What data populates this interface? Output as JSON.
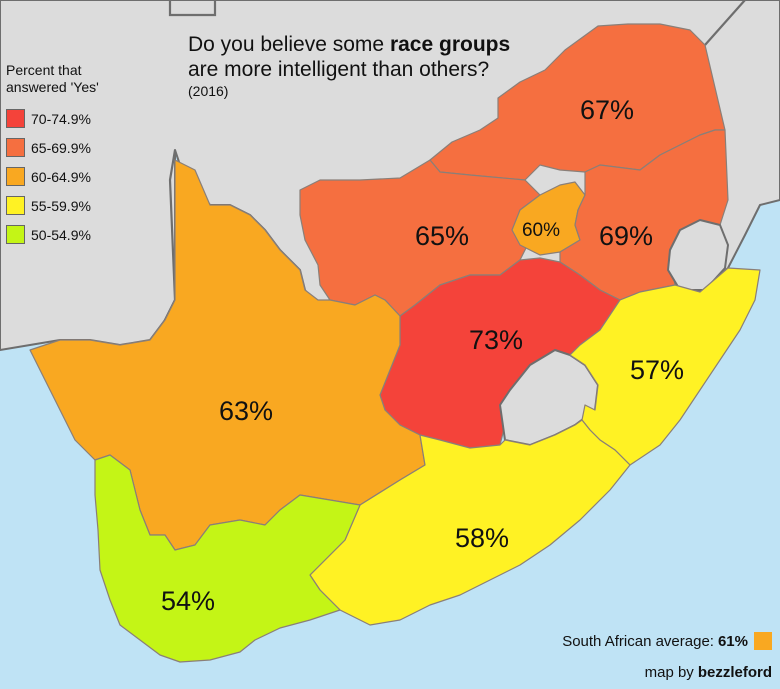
{
  "title": {
    "prefix": "Do you believe some ",
    "emphasis": "race groups",
    "line2": "are more intelligent than others?",
    "year": "(2016)"
  },
  "legend": {
    "title_line1": "Percent that",
    "title_line2": "answered 'Yes'",
    "items": [
      {
        "label": "70-74.9%",
        "color": "#f4433a"
      },
      {
        "label": "65-69.9%",
        "color": "#f56f40"
      },
      {
        "label": "60-64.9%",
        "color": "#f9a821"
      },
      {
        "label": "55-59.9%",
        "color": "#fff224"
      },
      {
        "label": "50-54.9%",
        "color": "#c4f516"
      }
    ]
  },
  "regions": [
    {
      "id": "limpopo",
      "label": "67%",
      "value": 67,
      "color": "#f56f40"
    },
    {
      "id": "north-west",
      "label": "65%",
      "value": 65,
      "color": "#f56f40"
    },
    {
      "id": "gauteng",
      "label": "60%",
      "value": 60,
      "color": "#f9a821"
    },
    {
      "id": "mpumalanga",
      "label": "69%",
      "value": 69,
      "color": "#f56f40"
    },
    {
      "id": "free-state",
      "label": "73%",
      "value": 73,
      "color": "#f4433a"
    },
    {
      "id": "kwazulu-natal",
      "label": "57%",
      "value": 57,
      "color": "#fff224"
    },
    {
      "id": "northern-cape",
      "label": "63%",
      "value": 63,
      "color": "#f9a821"
    },
    {
      "id": "eastern-cape",
      "label": "58%",
      "value": 58,
      "color": "#fff224"
    },
    {
      "id": "western-cape",
      "label": "54%",
      "value": 54,
      "color": "#c4f516"
    }
  ],
  "average": {
    "label": "South African average:",
    "value": "61%",
    "color": "#f9a821"
  },
  "credit": {
    "prefix": "map by",
    "author": "bezzleford"
  },
  "colors": {
    "sea": "#bfe3f5",
    "neighbor": "#dcdcdc",
    "border": "#6e6e6e"
  }
}
